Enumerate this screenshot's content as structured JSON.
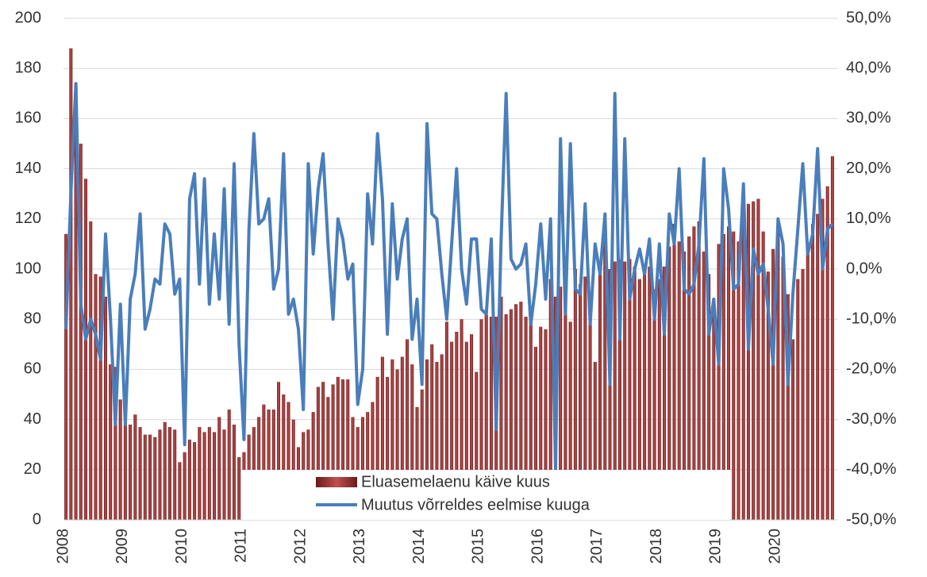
{
  "chart_data": {
    "type": "bar-line",
    "categories": [
      "2008",
      null,
      null,
      null,
      null,
      null,
      null,
      null,
      null,
      null,
      null,
      null,
      "2009",
      null,
      null,
      null,
      null,
      null,
      null,
      null,
      null,
      null,
      null,
      null,
      "2010",
      null,
      null,
      null,
      null,
      null,
      null,
      null,
      null,
      null,
      null,
      null,
      "2011",
      null,
      null,
      null,
      null,
      null,
      null,
      null,
      null,
      null,
      null,
      null,
      "2012",
      null,
      null,
      null,
      null,
      null,
      null,
      null,
      null,
      null,
      null,
      null,
      "2013",
      null,
      null,
      null,
      null,
      null,
      null,
      null,
      null,
      null,
      null,
      null,
      "2014",
      null,
      null,
      null,
      null,
      null,
      null,
      null,
      null,
      null,
      null,
      null,
      "2015",
      null,
      null,
      null,
      null,
      null,
      null,
      null,
      null,
      null,
      null,
      null,
      "2016",
      null,
      null,
      null,
      null,
      null,
      null,
      null,
      null,
      null,
      null,
      null,
      "2017",
      null,
      null,
      null,
      null,
      null,
      null,
      null,
      null,
      null,
      null,
      null,
      "2018",
      null,
      null,
      null,
      null,
      null,
      null,
      null,
      null,
      null,
      null,
      null,
      "2019",
      null,
      null,
      null,
      null,
      null,
      null,
      null,
      null,
      null,
      null,
      null,
      "2020",
      null,
      null,
      null,
      null,
      null,
      null,
      null,
      null,
      null,
      null,
      null
    ],
    "series": [
      {
        "name": "Eluasemelaenu käive kuus",
        "color": "#8b2a2a",
        "values": [
          114,
          188,
          174,
          150,
          136,
          119,
          98,
          97,
          89,
          62,
          61,
          48,
          38,
          38,
          42,
          37,
          34,
          34,
          33,
          36,
          39,
          37,
          36,
          23,
          27,
          32,
          31,
          37,
          35,
          37,
          35,
          41,
          36,
          44,
          38,
          25,
          27,
          34,
          37,
          41,
          46,
          44,
          44,
          55,
          50,
          47,
          40,
          29,
          35,
          36,
          43,
          53,
          55,
          49,
          54,
          57,
          56,
          56,
          41,
          37,
          41,
          43,
          47,
          57,
          65,
          57,
          64,
          60,
          65,
          72,
          62,
          45,
          52,
          64,
          70,
          63,
          66,
          79,
          71,
          75,
          80,
          71,
          74,
          59,
          80,
          82,
          81,
          81,
          89,
          82,
          84,
          86,
          87,
          81,
          85,
          69,
          77,
          76,
          96,
          89,
          93,
          85,
          79,
          100,
          94,
          97,
          82,
          63,
          102,
          112,
          100,
          103,
          104,
          103,
          104,
          101,
          96,
          99,
          101,
          92,
          96,
          101,
          109,
          118,
          111,
          107,
          113,
          117,
          119,
          107,
          98,
          88,
          110,
          114,
          117,
          115,
          111,
          119,
          126,
          127,
          128,
          115,
          99,
          108,
          116,
          105,
          90,
          72,
          96,
          100,
          107,
          118,
          122,
          128,
          133,
          145
        ]
      },
      {
        "name": "Muutus võrreldes eelmise kuuga",
        "color": "#4a7ebb",
        "axis": "y2",
        "values": [
          -12,
          15,
          37,
          -7,
          -14,
          -10,
          -13,
          -18,
          7,
          -10,
          -31,
          -7,
          -31,
          -6,
          -1,
          11,
          -12,
          -8,
          -2,
          -3,
          9,
          7,
          -5,
          -2,
          -35,
          14,
          19,
          -3,
          18,
          -7,
          7,
          -6,
          16,
          -11,
          21,
          -15,
          -34,
          8,
          27,
          9,
          10,
          14,
          -4,
          0,
          23,
          -9,
          -6,
          -12,
          -28,
          21,
          3,
          16,
          23,
          5,
          -10,
          10,
          6,
          -2,
          1,
          -27,
          -20,
          15,
          5,
          27,
          14,
          -13,
          13,
          -2,
          6,
          10,
          -14,
          -6,
          -23,
          29,
          11,
          10,
          -1,
          -10,
          5,
          20,
          0,
          -7,
          6,
          6,
          -8,
          -9,
          6,
          -32,
          6,
          35,
          2,
          0,
          1,
          5,
          -11,
          -3,
          9,
          -6,
          10,
          -40,
          26,
          -9,
          25,
          -4,
          -5,
          13,
          -11,
          5,
          -1,
          11,
          -23,
          35,
          -14,
          26,
          -6,
          0,
          4,
          -1,
          6,
          -10,
          5,
          -13,
          11,
          5,
          20,
          -4,
          -5,
          -3,
          5,
          22,
          -13,
          -6,
          -19,
          20,
          12,
          -4,
          -3,
          17,
          -16,
          4,
          -1,
          1,
          -8,
          -19,
          10,
          5,
          -23,
          -5,
          8,
          21,
          3,
          7,
          24,
          0,
          8,
          9
        ]
      }
    ],
    "ylim": [
      0,
      200
    ],
    "yticks": [
      0,
      20,
      40,
      60,
      80,
      100,
      120,
      140,
      160,
      180,
      200
    ],
    "y2lim": [
      -50,
      50
    ],
    "y2ticks": [
      {
        "value": -50,
        "label": "-50,0%"
      },
      {
        "value": -40,
        "label": "-40,0%"
      },
      {
        "value": -30,
        "label": "-30,0%"
      },
      {
        "value": -20,
        "label": "-20,0%"
      },
      {
        "value": -10,
        "label": "-10,0%"
      },
      {
        "value": 0,
        "label": "0,0%"
      },
      {
        "value": 10,
        "label": "10,0%"
      },
      {
        "value": 20,
        "label": "20,0%"
      },
      {
        "value": 30,
        "label": "30,0%"
      },
      {
        "value": 40,
        "label": "40,0%"
      },
      {
        "value": 50,
        "label": "50,0%"
      }
    ],
    "grid": true,
    "legend": "bottom"
  }
}
